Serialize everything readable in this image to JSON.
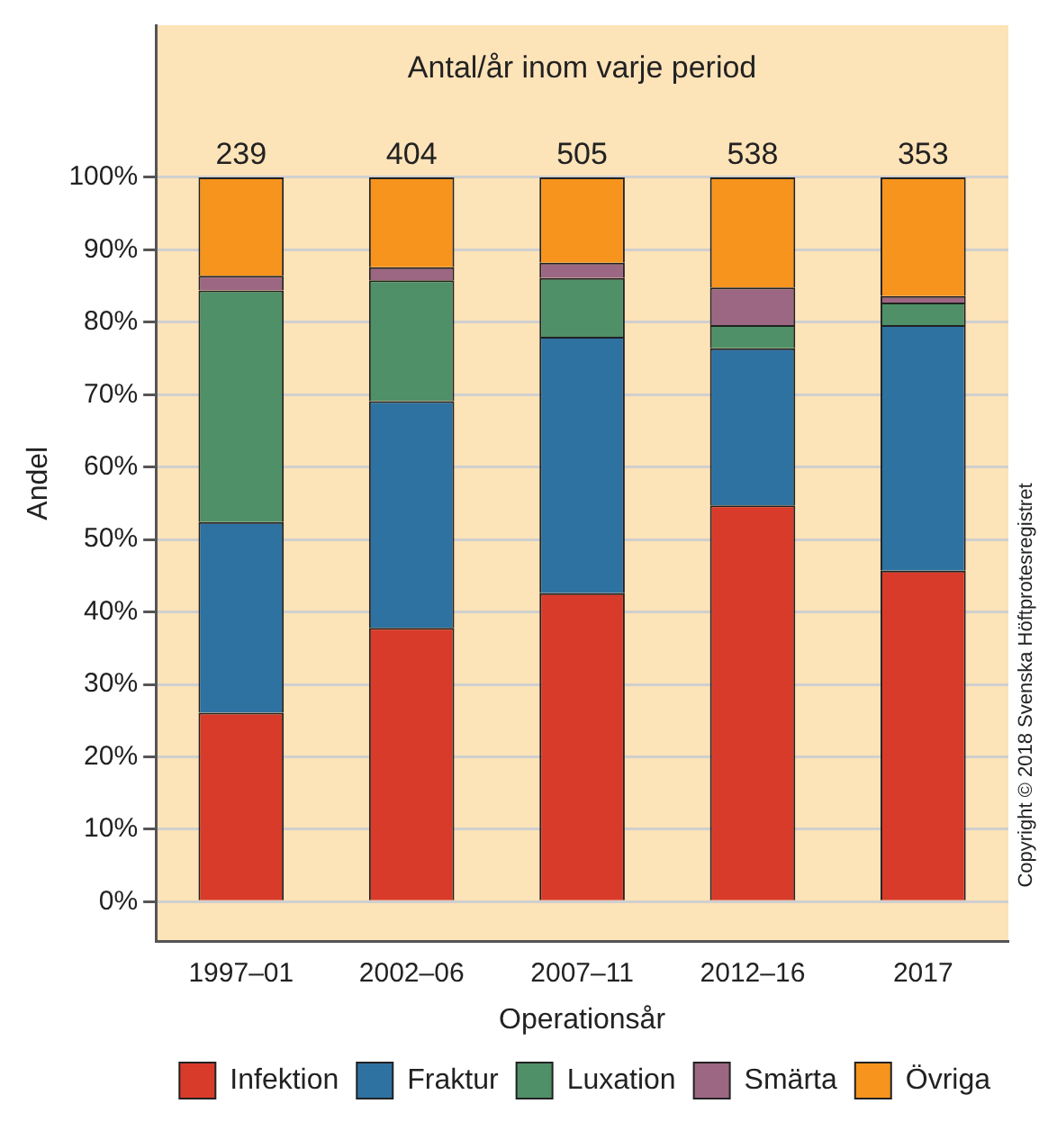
{
  "chart_data": {
    "type": "bar",
    "stacked": true,
    "title": "Antal/år inom varje period",
    "xlabel": "Operationsår",
    "ylabel": "Andel",
    "categories": [
      "1997–01",
      "2002–06",
      "2007–11",
      "2012–16",
      "2017"
    ],
    "series": [
      {
        "name": "Infektion",
        "color": "#d93b2b",
        "values": [
          26.1,
          37.8,
          42.6,
          54.7,
          45.7
        ]
      },
      {
        "name": "Fraktur",
        "color": "#2e72a2",
        "values": [
          26.3,
          31.3,
          35.4,
          21.7,
          33.9
        ]
      },
      {
        "name": "Luxation",
        "color": "#4f9068",
        "values": [
          32.0,
          16.7,
          8.1,
          3.2,
          3.1
        ]
      },
      {
        "name": "Smärta",
        "color": "#9c6783",
        "values": [
          2.0,
          1.8,
          2.1,
          5.2,
          0.9
        ]
      },
      {
        "name": "Övriga",
        "color": "#f7941d",
        "values": [
          13.6,
          12.4,
          11.8,
          15.2,
          16.4
        ]
      }
    ],
    "ylim": [
      -5.5,
      121
    ],
    "yticks": [
      {
        "value": 0,
        "label": "0%"
      },
      {
        "value": 10,
        "label": "10%"
      },
      {
        "value": 20,
        "label": "20%"
      },
      {
        "value": 30,
        "label": "30%"
      },
      {
        "value": 40,
        "label": "40%"
      },
      {
        "value": 50,
        "label": "50%"
      },
      {
        "value": 60,
        "label": "60%"
      },
      {
        "value": 70,
        "label": "70%"
      },
      {
        "value": 80,
        "label": "80%"
      },
      {
        "value": 90,
        "label": "90%"
      },
      {
        "value": 100,
        "label": "100%"
      }
    ],
    "grid": "y",
    "legend": "bottom",
    "annotations": [
      "Copyright © 2018 Svenska Höftprotesregistret",
      {
        "text": "239",
        "x": "1997–01",
        "y": 100
      },
      {
        "text": "404",
        "x": "2002–06",
        "y": 100
      },
      {
        "text": "505",
        "x": "2007–11",
        "y": 100
      },
      {
        "text": "538",
        "x": "2012–16",
        "y": 100
      },
      {
        "text": "353",
        "x": "2017",
        "y": 100
      }
    ]
  }
}
